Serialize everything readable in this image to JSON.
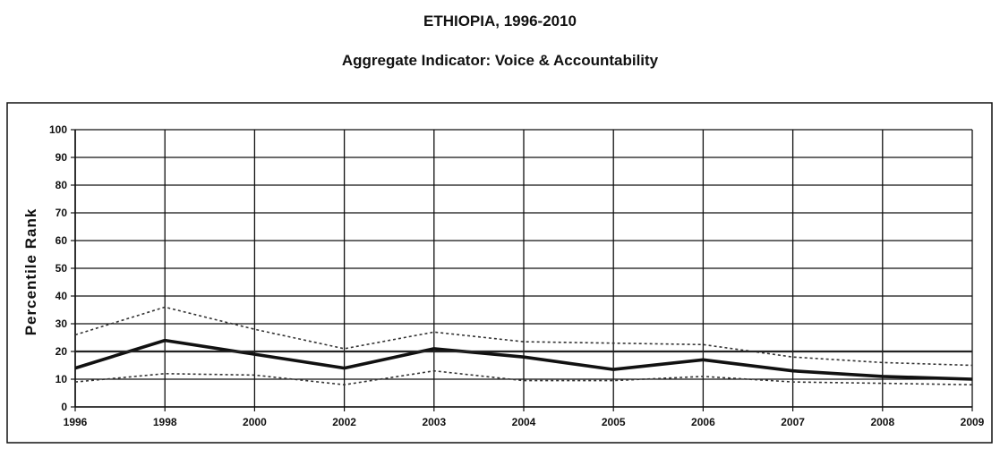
{
  "chart_data": {
    "type": "line",
    "title": "ETHIOPIA, 1996-2010",
    "subtitle": "Aggregate Indicator: Voice & Accountability",
    "ylabel": "Percentile Rank",
    "xlabel": "",
    "categories": [
      "1996",
      "1998",
      "2000",
      "2002",
      "2003",
      "2004",
      "2005",
      "2006",
      "2007",
      "2008",
      "2009"
    ],
    "ylim": [
      0,
      100
    ],
    "yticks": [
      0,
      10,
      20,
      30,
      40,
      50,
      60,
      70,
      80,
      90,
      100
    ],
    "grid": true,
    "series": [
      {
        "values": [
          14,
          24,
          19,
          14,
          21,
          18,
          13.5,
          17,
          13,
          11,
          10
        ],
        "style": "solid-thick",
        "color": "#111111"
      },
      {
        "values": [
          26,
          36,
          28,
          21,
          27,
          23.5,
          23,
          22.5,
          18,
          16,
          15
        ],
        "style": "dotted",
        "color": "#333333"
      },
      {
        "values": [
          9,
          12,
          11.5,
          8,
          13,
          9.5,
          9.5,
          11,
          9,
          8.5,
          8
        ],
        "style": "dotted",
        "color": "#333333"
      },
      {
        "values": [
          20,
          20,
          20,
          20,
          20,
          20,
          20,
          20,
          20,
          20,
          20
        ],
        "style": "solid",
        "color": "#222222"
      }
    ]
  }
}
